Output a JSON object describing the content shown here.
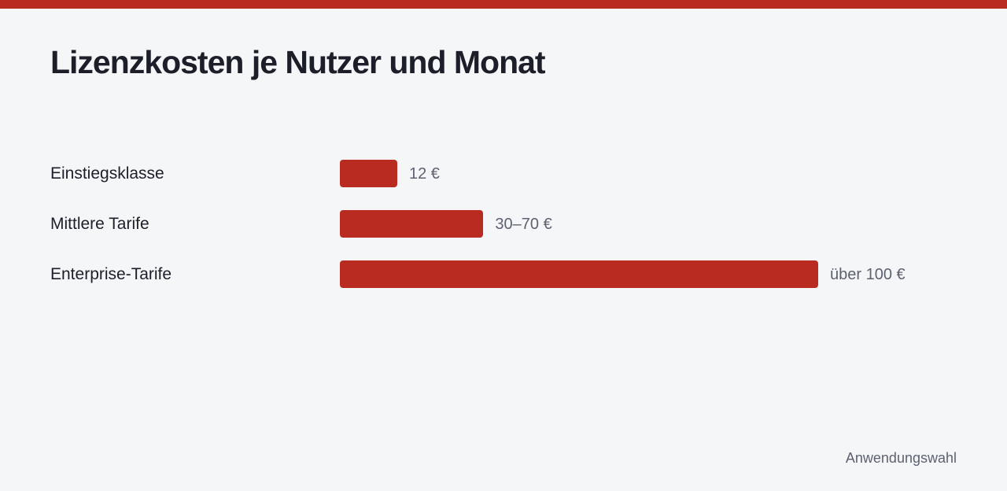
{
  "colors": {
    "accent": "#b92b20",
    "background": "#f5f6f8",
    "text": "#1c1f2a",
    "muted_text": "#5d6270"
  },
  "chart_data": {
    "type": "bar",
    "orientation": "horizontal",
    "title": "Lizenzkosten je Nutzer und Monat",
    "xlabel": "",
    "ylabel": "",
    "grid": false,
    "categories": [
      "Einstiegsklasse",
      "Mittlere Tarife",
      "Enterprise-Tarife"
    ],
    "values": [
      12,
      30,
      100
    ],
    "value_labels": [
      "12 €",
      "30–70 €",
      "über 100 €"
    ],
    "xlim": [
      0,
      100
    ]
  },
  "footer": {
    "source": "Anwendungswahl"
  }
}
